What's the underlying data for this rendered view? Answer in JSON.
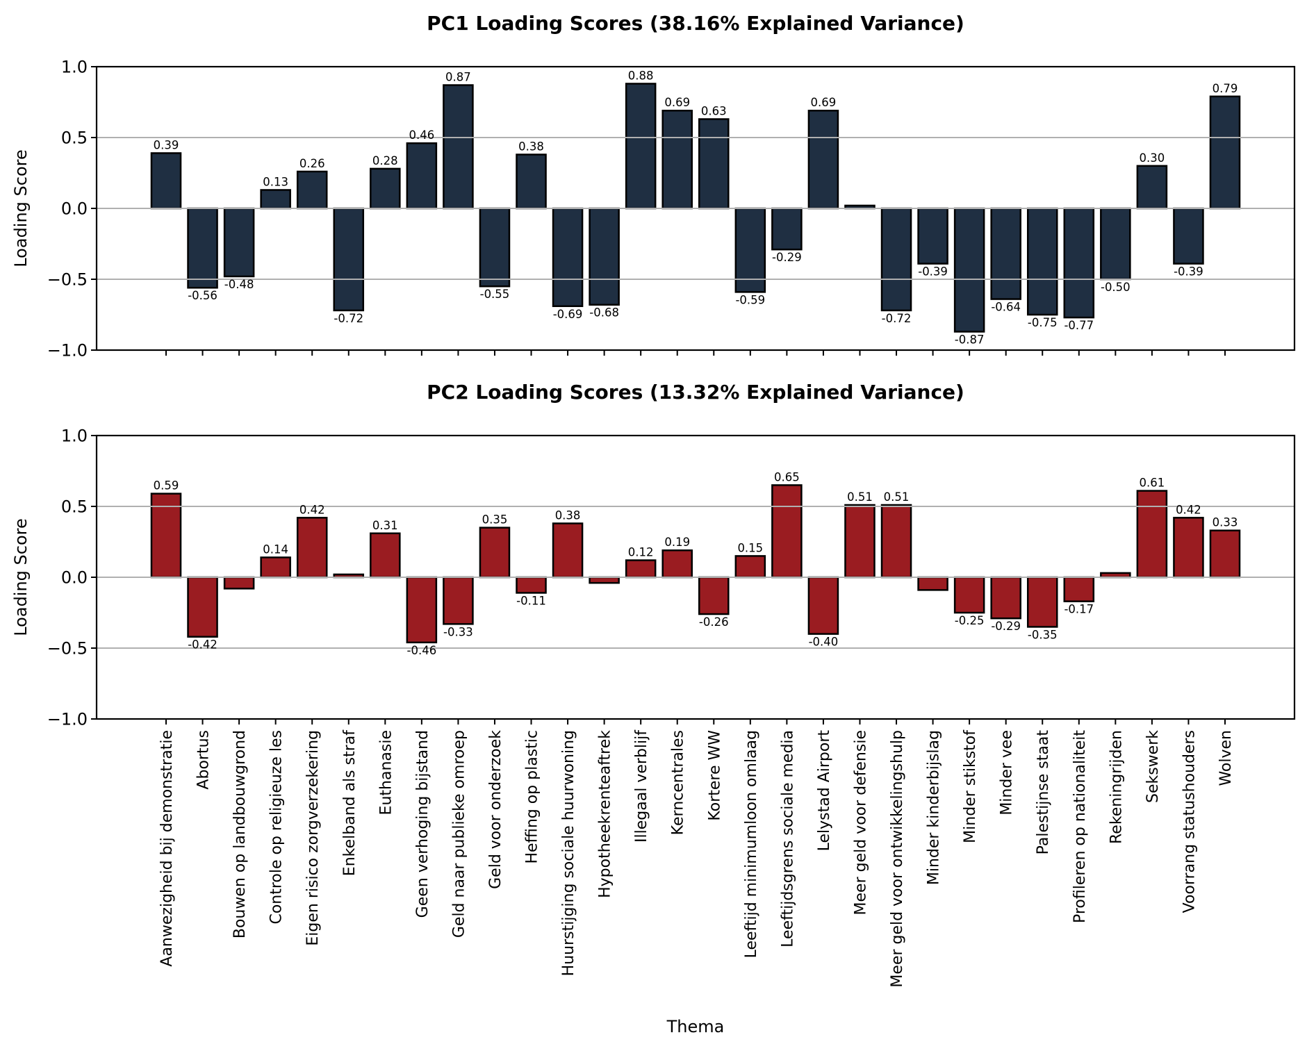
{
  "chart_data": [
    {
      "type": "bar",
      "title": "PC1 Loading Scores (38.16% Explained Variance)",
      "xlabel": "",
      "ylabel": "Loading Score",
      "ylim": [
        -1.0,
        1.0
      ],
      "yticks": [
        "1.0",
        "0.5",
        "0.0",
        "−0.5",
        "−1.0"
      ],
      "ytick_values": [
        1.0,
        0.5,
        0.0,
        -0.5,
        -1.0
      ],
      "grid": "y",
      "bar_color": "#1f2f42",
      "edge_color": "#000000",
      "label_threshold": 0.1,
      "categories": [
        "Aanwezigheid bij demonstratie",
        "Abortus",
        "Bouwen op landbouwgrond",
        "Controle op religieuze les",
        "Eigen risico zorgverzekering",
        "Enkelband als straf",
        "Euthanasie",
        "Geen verhoging bijstand",
        "Geld naar publieke omroep",
        "Geld voor onderzoek",
        "Heffing op plastic",
        "Huurstijging sociale huurwoning",
        "Hypotheekrenteaftrek",
        "Illegaal verblijf",
        "Kerncentrales",
        "Kortere WW",
        "Leeftijd minimumloon omlaag",
        "Leeftijdsgrens sociale media",
        "Lelystad Airport",
        "Meer geld voor defensie",
        "Meer geld voor ontwikkelingshulp",
        "Minder kinderbijslag",
        "Minder stikstof",
        "Minder vee",
        "Palestijnse staat",
        "Profileren op nationaliteit",
        "Rekeningrijden",
        "Sekswerk",
        "Voorrang statushouders",
        "Wolven"
      ],
      "values": [
        0.39,
        -0.56,
        -0.48,
        0.13,
        0.26,
        -0.72,
        0.28,
        0.46,
        0.87,
        -0.55,
        0.38,
        -0.69,
        -0.68,
        0.88,
        0.69,
        0.63,
        -0.59,
        -0.29,
        0.69,
        0.02,
        -0.72,
        -0.39,
        -0.87,
        -0.64,
        -0.75,
        -0.77,
        -0.5,
        0.3,
        -0.39,
        0.79
      ]
    },
    {
      "type": "bar",
      "title": "PC2 Loading Scores (13.32% Explained Variance)",
      "xlabel": "Thema",
      "ylabel": "Loading Score",
      "ylim": [
        -1.0,
        1.0
      ],
      "yticks": [
        "1.0",
        "0.5",
        "0.0",
        "−0.5",
        "−1.0"
      ],
      "ytick_values": [
        1.0,
        0.5,
        0.0,
        -0.5,
        -1.0
      ],
      "grid": "y",
      "bar_color": "#9a1c21",
      "edge_color": "#000000",
      "label_threshold": 0.1,
      "categories": [
        "Aanwezigheid bij demonstratie",
        "Abortus",
        "Bouwen op landbouwgrond",
        "Controle op religieuze les",
        "Eigen risico zorgverzekering",
        "Enkelband als straf",
        "Euthanasie",
        "Geen verhoging bijstand",
        "Geld naar publieke omroep",
        "Geld voor onderzoek",
        "Heffing op plastic",
        "Huurstijging sociale huurwoning",
        "Hypotheekrenteaftrek",
        "Illegaal verblijf",
        "Kerncentrales",
        "Kortere WW",
        "Leeftijd minimumloon omlaag",
        "Leeftijdsgrens sociale media",
        "Lelystad Airport",
        "Meer geld voor defensie",
        "Meer geld voor ontwikkelingshulp",
        "Minder kinderbijslag",
        "Minder stikstof",
        "Minder vee",
        "Palestijnse staat",
        "Profileren op nationaliteit",
        "Rekeningrijden",
        "Sekswerk",
        "Voorrang statushouders",
        "Wolven"
      ],
      "values": [
        0.59,
        -0.42,
        -0.08,
        0.14,
        0.42,
        0.02,
        0.31,
        -0.46,
        -0.33,
        0.35,
        -0.11,
        0.38,
        -0.04,
        0.12,
        0.19,
        -0.26,
        0.15,
        0.65,
        -0.4,
        0.51,
        0.51,
        -0.09,
        -0.25,
        -0.29,
        -0.35,
        -0.17,
        0.03,
        0.61,
        0.42,
        0.33
      ]
    }
  ]
}
